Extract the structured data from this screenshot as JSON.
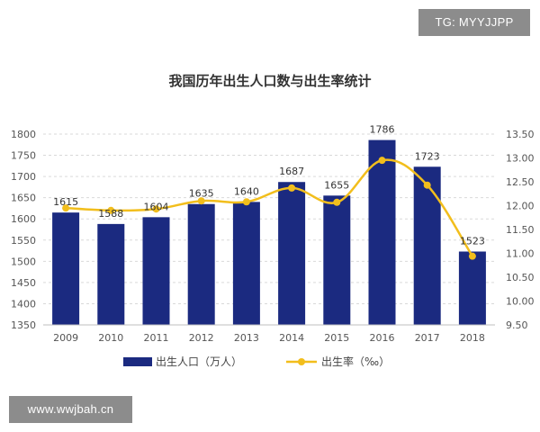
{
  "overlays": {
    "top_right_tag": "TG: MYYJJPP",
    "bottom_left_tag": "www.wwjbah.cn"
  },
  "colors": {
    "bar": "#1b2a80",
    "line": "#f2be1c",
    "grid": "#d9d9d9",
    "axis_text": "#555555"
  },
  "chart_data": {
    "type": "bar+line",
    "title": "我国历年出生人口数与出生率统计",
    "categories": [
      "2009",
      "2010",
      "2011",
      "2012",
      "2013",
      "2014",
      "2015",
      "2016",
      "2017",
      "2018"
    ],
    "series": [
      {
        "name": "出生人口（万人）",
        "type": "bar",
        "axis": "left",
        "values": [
          1615,
          1588,
          1604,
          1635,
          1640,
          1687,
          1655,
          1786,
          1723,
          1523
        ]
      },
      {
        "name": "出生率（‰）",
        "type": "line",
        "axis": "right",
        "values": [
          11.95,
          11.9,
          11.93,
          12.1,
          12.08,
          12.37,
          12.07,
          12.95,
          12.43,
          10.94
        ]
      }
    ],
    "y_left": {
      "min": 1350,
      "max": 1800,
      "step": 50,
      "ticks": [
        "1350",
        "1400",
        "1450",
        "1500",
        "1550",
        "1600",
        "1650",
        "1700",
        "1750",
        "1800"
      ]
    },
    "y_right": {
      "min": 9.5,
      "max": 13.5,
      "step": 0.5,
      "ticks": [
        "9.50",
        "10.00",
        "10.50",
        "11.00",
        "11.50",
        "12.00",
        "12.50",
        "13.00",
        "13.50"
      ]
    },
    "grid": true,
    "legend_position": "bottom"
  }
}
